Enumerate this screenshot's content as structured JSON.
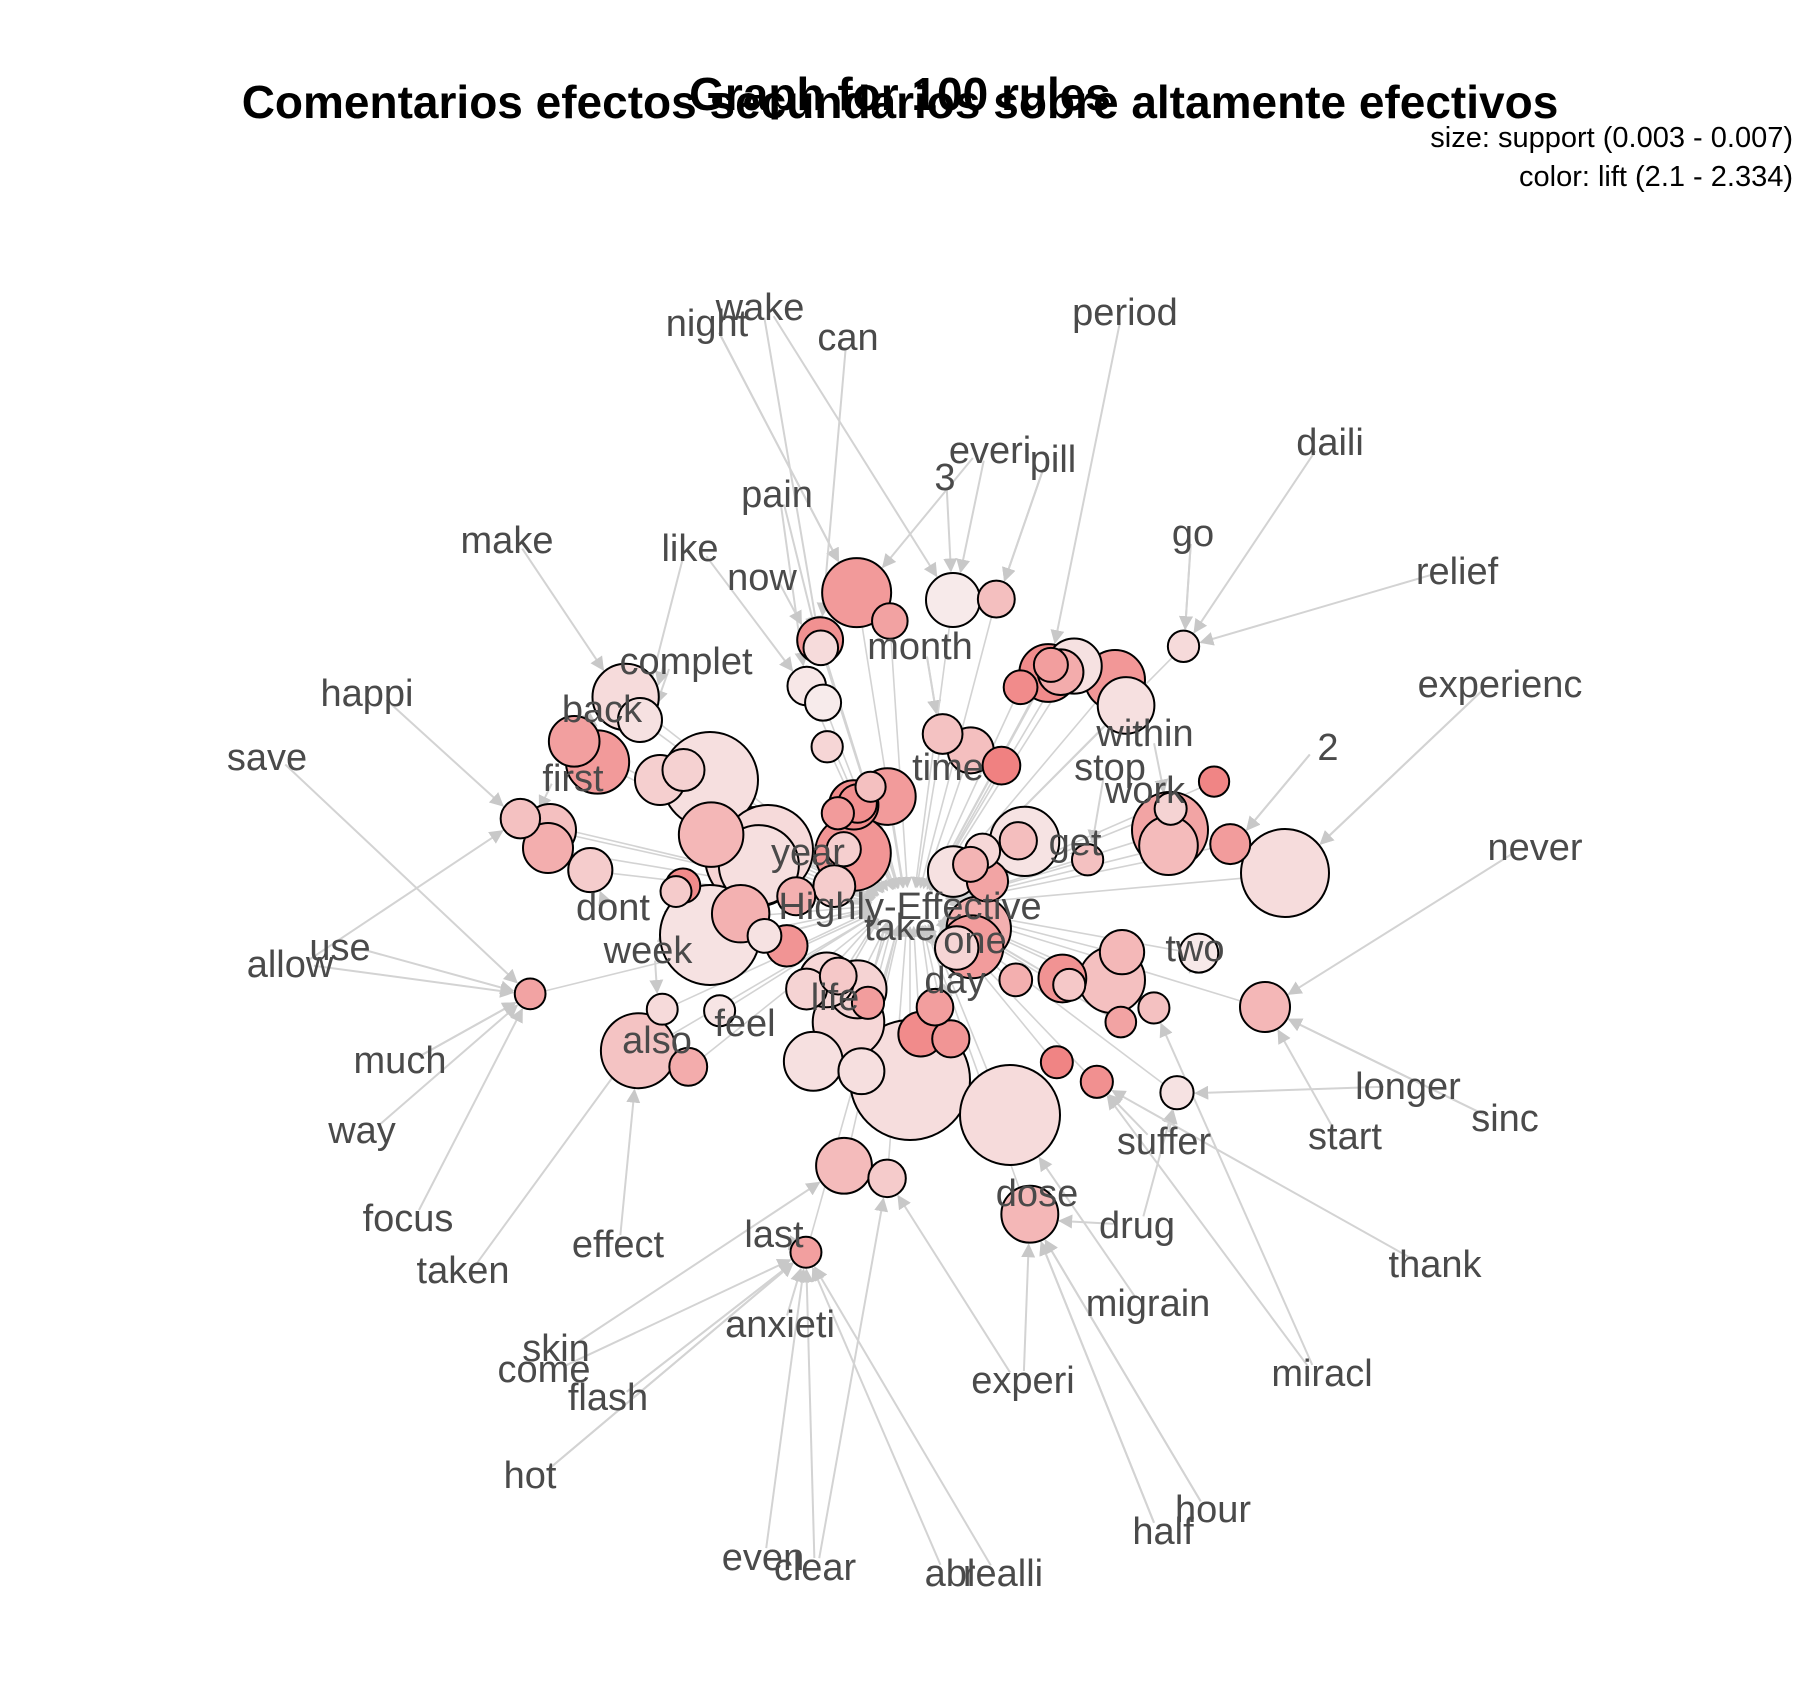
{
  "plot": {
    "title_main": "Comentarios efectos secundarios sobre altamente efectivos",
    "title_overlay": "Graph for 100 rules",
    "legend_size": "size: support (0.003 - 0.007)",
    "legend_color": "color: lift (2.1 - 2.334)"
  },
  "colors": {
    "high_lift": "#f08080",
    "low_lift": "#f7ebeb",
    "edge": "#d3d3d3",
    "node_border": "#000000",
    "label": "#4a4a4a"
  },
  "chart_data": {
    "type": "network",
    "rule_count": 100,
    "size_measure": "support",
    "size_range": [
      0.003,
      0.007
    ],
    "color_measure": "lift",
    "color_range": [
      2.1,
      2.334
    ],
    "central_item": "Highly-Effective",
    "item_labels": [
      "night",
      "wake",
      "can",
      "period",
      "everi",
      "pill",
      "3",
      "daili",
      "pain",
      "make",
      "like",
      "go",
      "now",
      "relief",
      "month",
      "complet",
      "experienc",
      "happi",
      "back",
      "within",
      "2",
      "save",
      "first",
      "time",
      "stop",
      "work",
      "never",
      "year",
      "get",
      "Highly-Effective",
      "dont",
      "take",
      "one",
      "two",
      "use",
      "allow",
      "week",
      "day",
      "life",
      "feel",
      "much",
      "also",
      "longer",
      "sinc",
      "start",
      "way",
      "suffer",
      "dose",
      "focus",
      "drug",
      "thank",
      "last",
      "effect",
      "taken",
      "migrain",
      "anxieti",
      "skin",
      "come",
      "experi",
      "miracl",
      "flash",
      "hot",
      "hour",
      "half",
      "even",
      "clear",
      "abl",
      "realli"
    ]
  }
}
